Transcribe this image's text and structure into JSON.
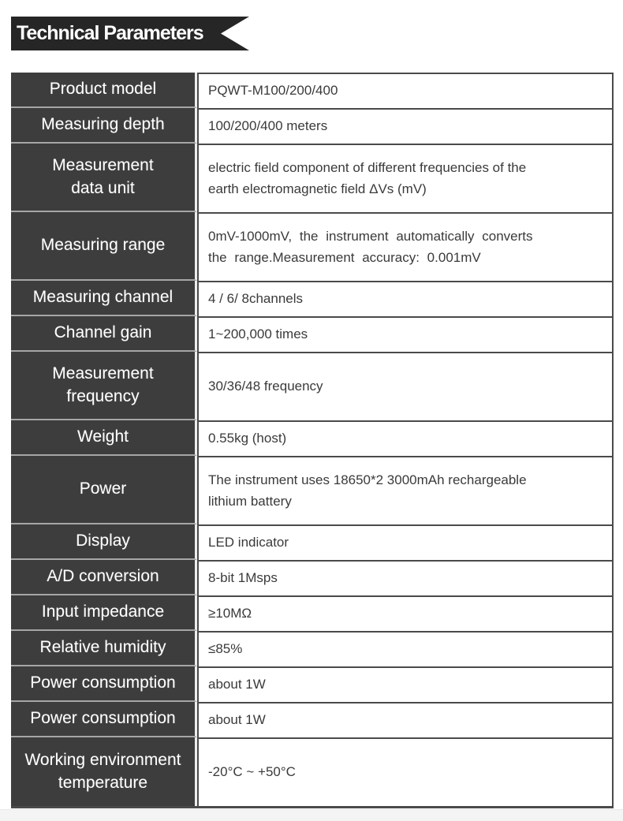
{
  "header": {
    "title": "Technical Parameters"
  },
  "colors": {
    "banner_bg": "#262626",
    "banner_text": "#ffffff",
    "param_cell_bg": "#3d3d3d",
    "param_cell_text": "#ffffff",
    "param_divider": "#a6a6a6",
    "column_gap": "#ededed",
    "value_border": "#4a4a4a",
    "value_text": "#3a3a3a",
    "page_bg": "#ffffff",
    "footer_strip": "#f4f4f5"
  },
  "table": {
    "rows": [
      {
        "param": "Product model",
        "value": "PQWT-M100/200/400",
        "size": "s"
      },
      {
        "param": "Measuring depth",
        "value": "100/200/400 meters",
        "size": "s"
      },
      {
        "param": "Measurement\ndata unit",
        "value": "electric field component of different frequencies of the\nearth electromagnetic field ΔVs (mV)",
        "size": "l"
      },
      {
        "param": "Measuring range",
        "value": "0mV-1000mV, the instrument automatically converts\nthe range.Measurement accuracy: 0.001mV",
        "size": "l",
        "justify": true
      },
      {
        "param": "Measuring channel",
        "value": "4 / 6/ 8channels",
        "size": "s"
      },
      {
        "param": "Channel gain",
        "value": "1~200,000 times",
        "size": "s"
      },
      {
        "param": "Measurement\nfrequency",
        "value": "30/36/48 frequency",
        "size": "l"
      },
      {
        "param": "Weight",
        "value": "0.55kg (host)",
        "size": "s"
      },
      {
        "param": "Power",
        "value": "The instrument uses 18650*2 3000mAh rechargeable\nlithium battery",
        "size": "l"
      },
      {
        "param": "Display",
        "value": "LED indicator",
        "size": "s"
      },
      {
        "param": "A/D conversion",
        "value": "8-bit 1Msps",
        "size": "s"
      },
      {
        "param": "Input impedance",
        "value": "≥10MΩ",
        "size": "s"
      },
      {
        "param": "Relative humidity",
        "value": "≤85%",
        "size": "s"
      },
      {
        "param": "Power consumption",
        "value": "about 1W",
        "size": "s"
      },
      {
        "param": "Power consumption",
        "value": "about 1W",
        "size": "s"
      },
      {
        "param": "Working environment\ntemperature",
        "value": "-20°C ~ +50°C",
        "size": "l"
      }
    ]
  }
}
